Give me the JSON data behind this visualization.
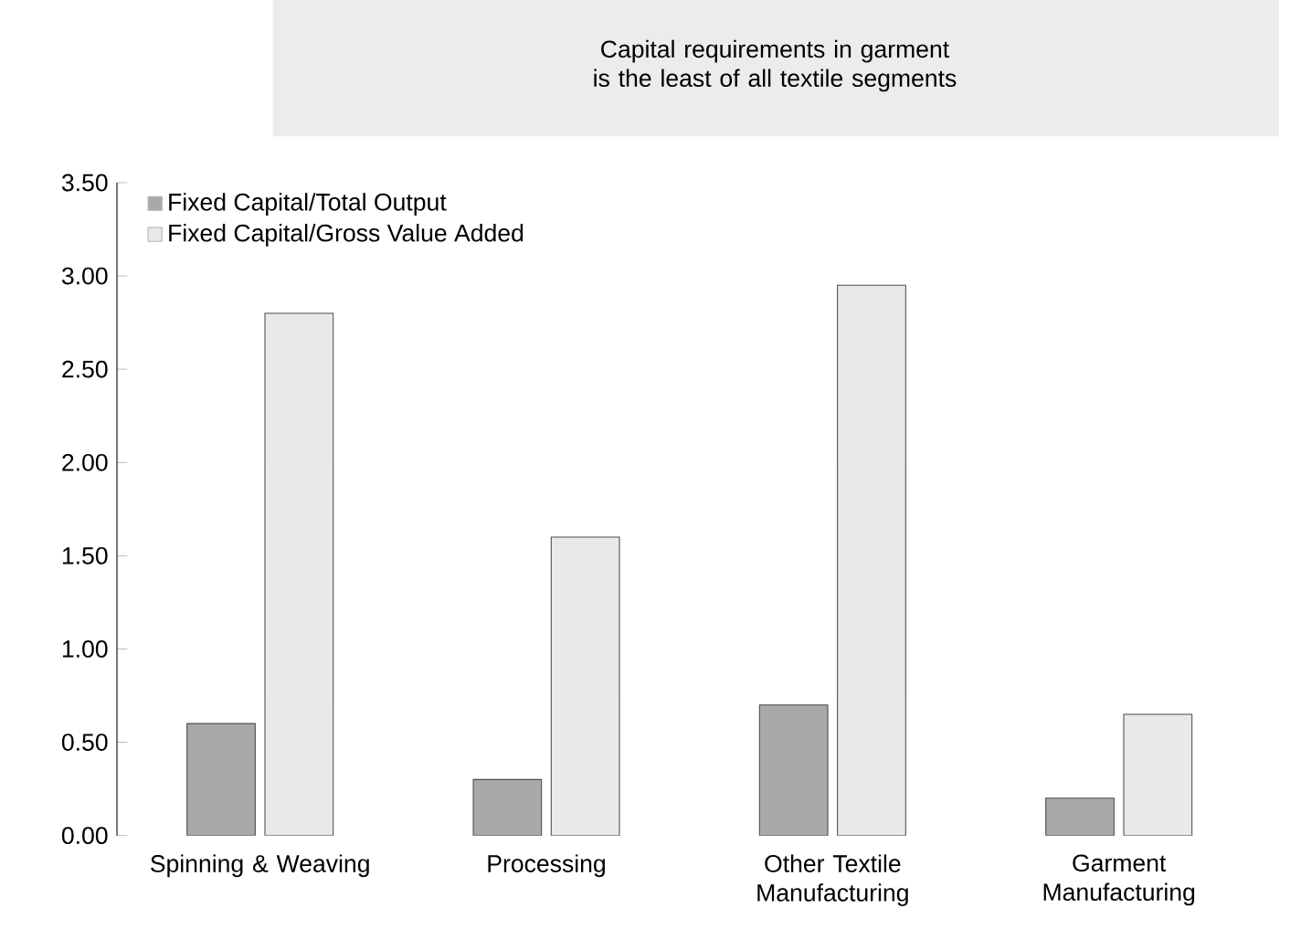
{
  "chart_data": {
    "type": "bar",
    "title": "Capital requirements in garment is the least of all textile segments",
    "categories": [
      "Spinning & Weaving",
      "Processing",
      "Other Textile Manufacturing",
      "Garment Manufacturing"
    ],
    "series": [
      {
        "name": "Fixed Capital/Total Output",
        "color": "#a9a9a9",
        "values": [
          0.6,
          0.3,
          0.7,
          0.2
        ]
      },
      {
        "name": "Fixed Capital/Gross Value Added",
        "color": "#e9e9e9",
        "values": [
          2.8,
          1.6,
          2.95,
          0.65
        ]
      }
    ],
    "ylim": [
      0,
      3.5
    ],
    "yticks": [
      {
        "value": 0,
        "label": "0.00"
      },
      {
        "value": 0.5,
        "label": "0.50"
      },
      {
        "value": 1,
        "label": "1.00"
      },
      {
        "value": 1.5,
        "label": "1.50"
      },
      {
        "value": 2,
        "label": "2.00"
      },
      {
        "value": 2.5,
        "label": "2.50"
      },
      {
        "value": 3,
        "label": "3.00"
      },
      {
        "value": 3.5,
        "label": "3.50"
      }
    ],
    "legend": "top left"
  }
}
